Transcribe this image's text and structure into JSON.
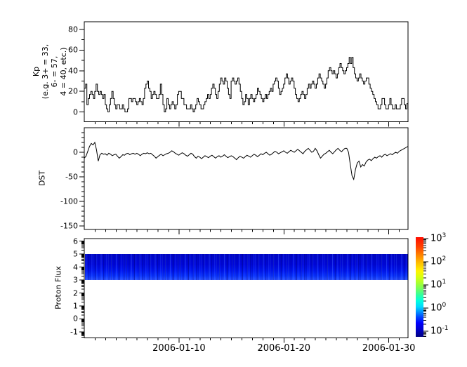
{
  "panels": {
    "kp": {
      "ylabel_line1": "Kp",
      "ylabel_line2": "(e.g. 3+ = 33,",
      "ylabel_line3": "6- = 57,",
      "ylabel_line4": "4 = 40, etc.)"
    },
    "dst": {
      "ylabel": "DST"
    },
    "proton": {
      "ylabel": "Proton Flux"
    }
  },
  "chart_data": [
    {
      "id": "kp",
      "type": "line",
      "subtype": "step",
      "ylabel": "Kp (e.g. 3+ = 33, 6- = 57, 4 = 40, etc.)",
      "line_color": "#000000",
      "ylim": [
        -9.5,
        87.5
      ],
      "yticks": [
        0,
        20,
        40,
        60,
        80
      ],
      "ytick_labels": [
        "0",
        "20",
        "40",
        "60",
        "80"
      ],
      "yminor": [
        10,
        30,
        50,
        70
      ],
      "xlim_days": [
        0,
        30.86
      ],
      "x_start_date": "2006-01-01",
      "x_step_days": 0.125,
      "xticks_days": [
        9.03,
        19.03,
        29.03
      ],
      "xtick_labels": [
        "2006-01-10",
        "2006-01-20",
        "2006-01-30"
      ],
      "xminor_days": [
        1.03,
        2.03,
        3.03,
        4.03,
        5.03,
        6.03,
        7.03,
        8.03,
        10.03,
        11.03,
        12.03,
        13.03,
        14.03,
        15.03,
        16.03,
        17.03,
        18.03,
        20.03,
        21.03,
        22.03,
        23.03,
        24.03,
        25.03,
        26.03,
        27.03,
        28.03,
        30.03
      ],
      "values": [
        23,
        27,
        7,
        13,
        17,
        20,
        17,
        13,
        20,
        27,
        20,
        17,
        20,
        17,
        13,
        17,
        7,
        3,
        0,
        7,
        13,
        20,
        13,
        7,
        3,
        7,
        7,
        3,
        3,
        7,
        3,
        0,
        0,
        3,
        13,
        13,
        10,
        13,
        13,
        10,
        7,
        10,
        13,
        10,
        7,
        13,
        23,
        27,
        30,
        23,
        20,
        13,
        17,
        20,
        17,
        13,
        13,
        17,
        27,
        17,
        7,
        0,
        3,
        13,
        7,
        3,
        7,
        10,
        7,
        3,
        7,
        17,
        20,
        20,
        13,
        13,
        7,
        7,
        3,
        3,
        3,
        7,
        3,
        0,
        3,
        7,
        13,
        10,
        7,
        3,
        3,
        7,
        10,
        13,
        17,
        13,
        17,
        23,
        27,
        23,
        17,
        13,
        20,
        27,
        33,
        30,
        27,
        33,
        30,
        23,
        17,
        13,
        30,
        33,
        30,
        27,
        30,
        33,
        27,
        20,
        13,
        7,
        10,
        17,
        13,
        7,
        13,
        17,
        13,
        10,
        13,
        17,
        23,
        20,
        17,
        13,
        10,
        13,
        17,
        13,
        17,
        20,
        23,
        20,
        27,
        30,
        33,
        30,
        23,
        17,
        20,
        23,
        27,
        33,
        37,
        33,
        27,
        30,
        33,
        30,
        23,
        17,
        13,
        10,
        13,
        17,
        20,
        17,
        13,
        17,
        23,
        27,
        23,
        27,
        30,
        27,
        23,
        27,
        33,
        37,
        33,
        30,
        27,
        23,
        27,
        33,
        40,
        43,
        40,
        37,
        40,
        37,
        33,
        37,
        43,
        47,
        43,
        40,
        37,
        40,
        43,
        47,
        53,
        47,
        53,
        43,
        37,
        33,
        30,
        33,
        37,
        33,
        30,
        27,
        30,
        33,
        33,
        27,
        23,
        20,
        17,
        13,
        10,
        7,
        3,
        3,
        7,
        13,
        13,
        7,
        3,
        3,
        7,
        13,
        7,
        3,
        3,
        7,
        3,
        3,
        3,
        7,
        13,
        13,
        7,
        3,
        8,
        8
      ]
    },
    {
      "id": "dst",
      "type": "line",
      "ylabel": "DST",
      "line_color": "#000000",
      "ylim": [
        -157,
        50
      ],
      "yticks": [
        0,
        -50,
        -100,
        -150
      ],
      "ytick_labels": [
        "0",
        "-50",
        "-100",
        "-150"
      ],
      "yminor": [
        40,
        30,
        20,
        10,
        -10,
        -20,
        -30,
        -40,
        -60,
        -70,
        -80,
        -90,
        -110,
        -120,
        -130,
        -140
      ],
      "xlim_days": [
        0,
        30.86
      ],
      "x_start_date": "2006-01-01",
      "x_step_days": 0.16681,
      "values": [
        -12,
        -8,
        2,
        12,
        18,
        15,
        20,
        5,
        -18,
        -5,
        -2,
        -4,
        -3,
        -6,
        -2,
        -4,
        -7,
        -5,
        -4,
        -8,
        -12,
        -9,
        -5,
        -6,
        -3,
        -2,
        -5,
        -3,
        -2,
        -4,
        -2,
        -4,
        -7,
        -4,
        -2,
        -3,
        -1,
        -3,
        -2,
        -5,
        -8,
        -12,
        -9,
        -6,
        -4,
        -7,
        -5,
        -3,
        -2,
        0,
        3,
        1,
        -2,
        -4,
        -6,
        -3,
        -1,
        -3,
        -6,
        -8,
        -5,
        -2,
        -4,
        -9,
        -12,
        -8,
        -10,
        -13,
        -10,
        -7,
        -9,
        -11,
        -8,
        -6,
        -9,
        -12,
        -9,
        -7,
        -10,
        -8,
        -5,
        -8,
        -11,
        -9,
        -7,
        -9,
        -12,
        -15,
        -11,
        -8,
        -10,
        -12,
        -9,
        -6,
        -8,
        -10,
        -7,
        -4,
        -6,
        -9,
        -6,
        -3,
        -5,
        -2,
        0,
        -3,
        -6,
        -4,
        -1,
        2,
        0,
        -3,
        -1,
        1,
        3,
        0,
        -2,
        1,
        4,
        2,
        0,
        3,
        6,
        3,
        0,
        -3,
        2,
        5,
        8,
        4,
        0,
        2,
        8,
        3,
        -5,
        -12,
        -8,
        -4,
        -2,
        1,
        4,
        0,
        -3,
        1,
        5,
        8,
        4,
        1,
        5,
        8,
        8,
        0,
        -25,
        -48,
        -55,
        -35,
        -22,
        -18,
        -30,
        -25,
        -28,
        -20,
        -16,
        -14,
        -17,
        -13,
        -10,
        -12,
        -9,
        -7,
        -10,
        -6,
        -4,
        -7,
        -5,
        -3,
        -5,
        -2,
        0,
        -2,
        2,
        4,
        6,
        8,
        10,
        12
      ]
    },
    {
      "id": "proton_flux",
      "type": "heatmap",
      "ylabel": "Proton Flux",
      "yscale": "log-exponent",
      "ylim": [
        -1.46,
        6.19
      ],
      "yticks": [
        -1,
        0,
        1,
        2,
        3,
        4,
        5,
        6
      ],
      "ytick_labels": [
        "-1",
        "0",
        "1",
        "2",
        "3",
        "4",
        "5",
        "6"
      ],
      "log_minor_offsets": [
        0.301,
        0.477,
        0.602,
        0.699,
        0.778,
        0.845,
        0.903,
        0.954
      ],
      "band_y_range": [
        3,
        5
      ],
      "band_value_range": [
        0.08,
        0.6
      ],
      "band_dominant_color": "#0010e8",
      "colorbar": {
        "colormap": "jet",
        "scale": "log",
        "base": "10",
        "tick_exponents": [
          3,
          2,
          1,
          0,
          -1
        ],
        "tick_exponent_labels": [
          "3",
          "2",
          "1",
          "0",
          "-1"
        ],
        "range_exponents": [
          -1.24,
          3.06
        ]
      }
    }
  ]
}
